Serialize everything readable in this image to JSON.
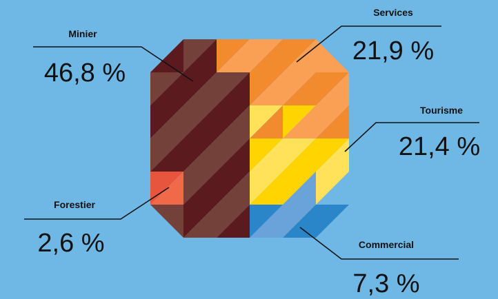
{
  "chart_data": {
    "type": "pie",
    "title": "",
    "categories": [
      "Minier",
      "Services",
      "Tourisme",
      "Commercial",
      "Forestier"
    ],
    "values": [
      46.8,
      21.9,
      21.4,
      7.3,
      2.6
    ],
    "value_labels": [
      "46,8 %",
      "21,9 %",
      "21,4 %",
      "7,3 %",
      "2,6 %"
    ],
    "legend": "none",
    "colors": {
      "Minier": [
        "#5a1a1e",
        "#74403a"
      ],
      "Services": [
        "#f28a2e",
        "#f9a055"
      ],
      "Tourisme": [
        "#ffd400",
        "#ffe15a"
      ],
      "Commercial": [
        "#2a86c9",
        "#6aa3d9"
      ],
      "Forestier": [
        "#e8553f",
        "#f06a4a"
      ]
    }
  },
  "background": "#6fb8e6"
}
